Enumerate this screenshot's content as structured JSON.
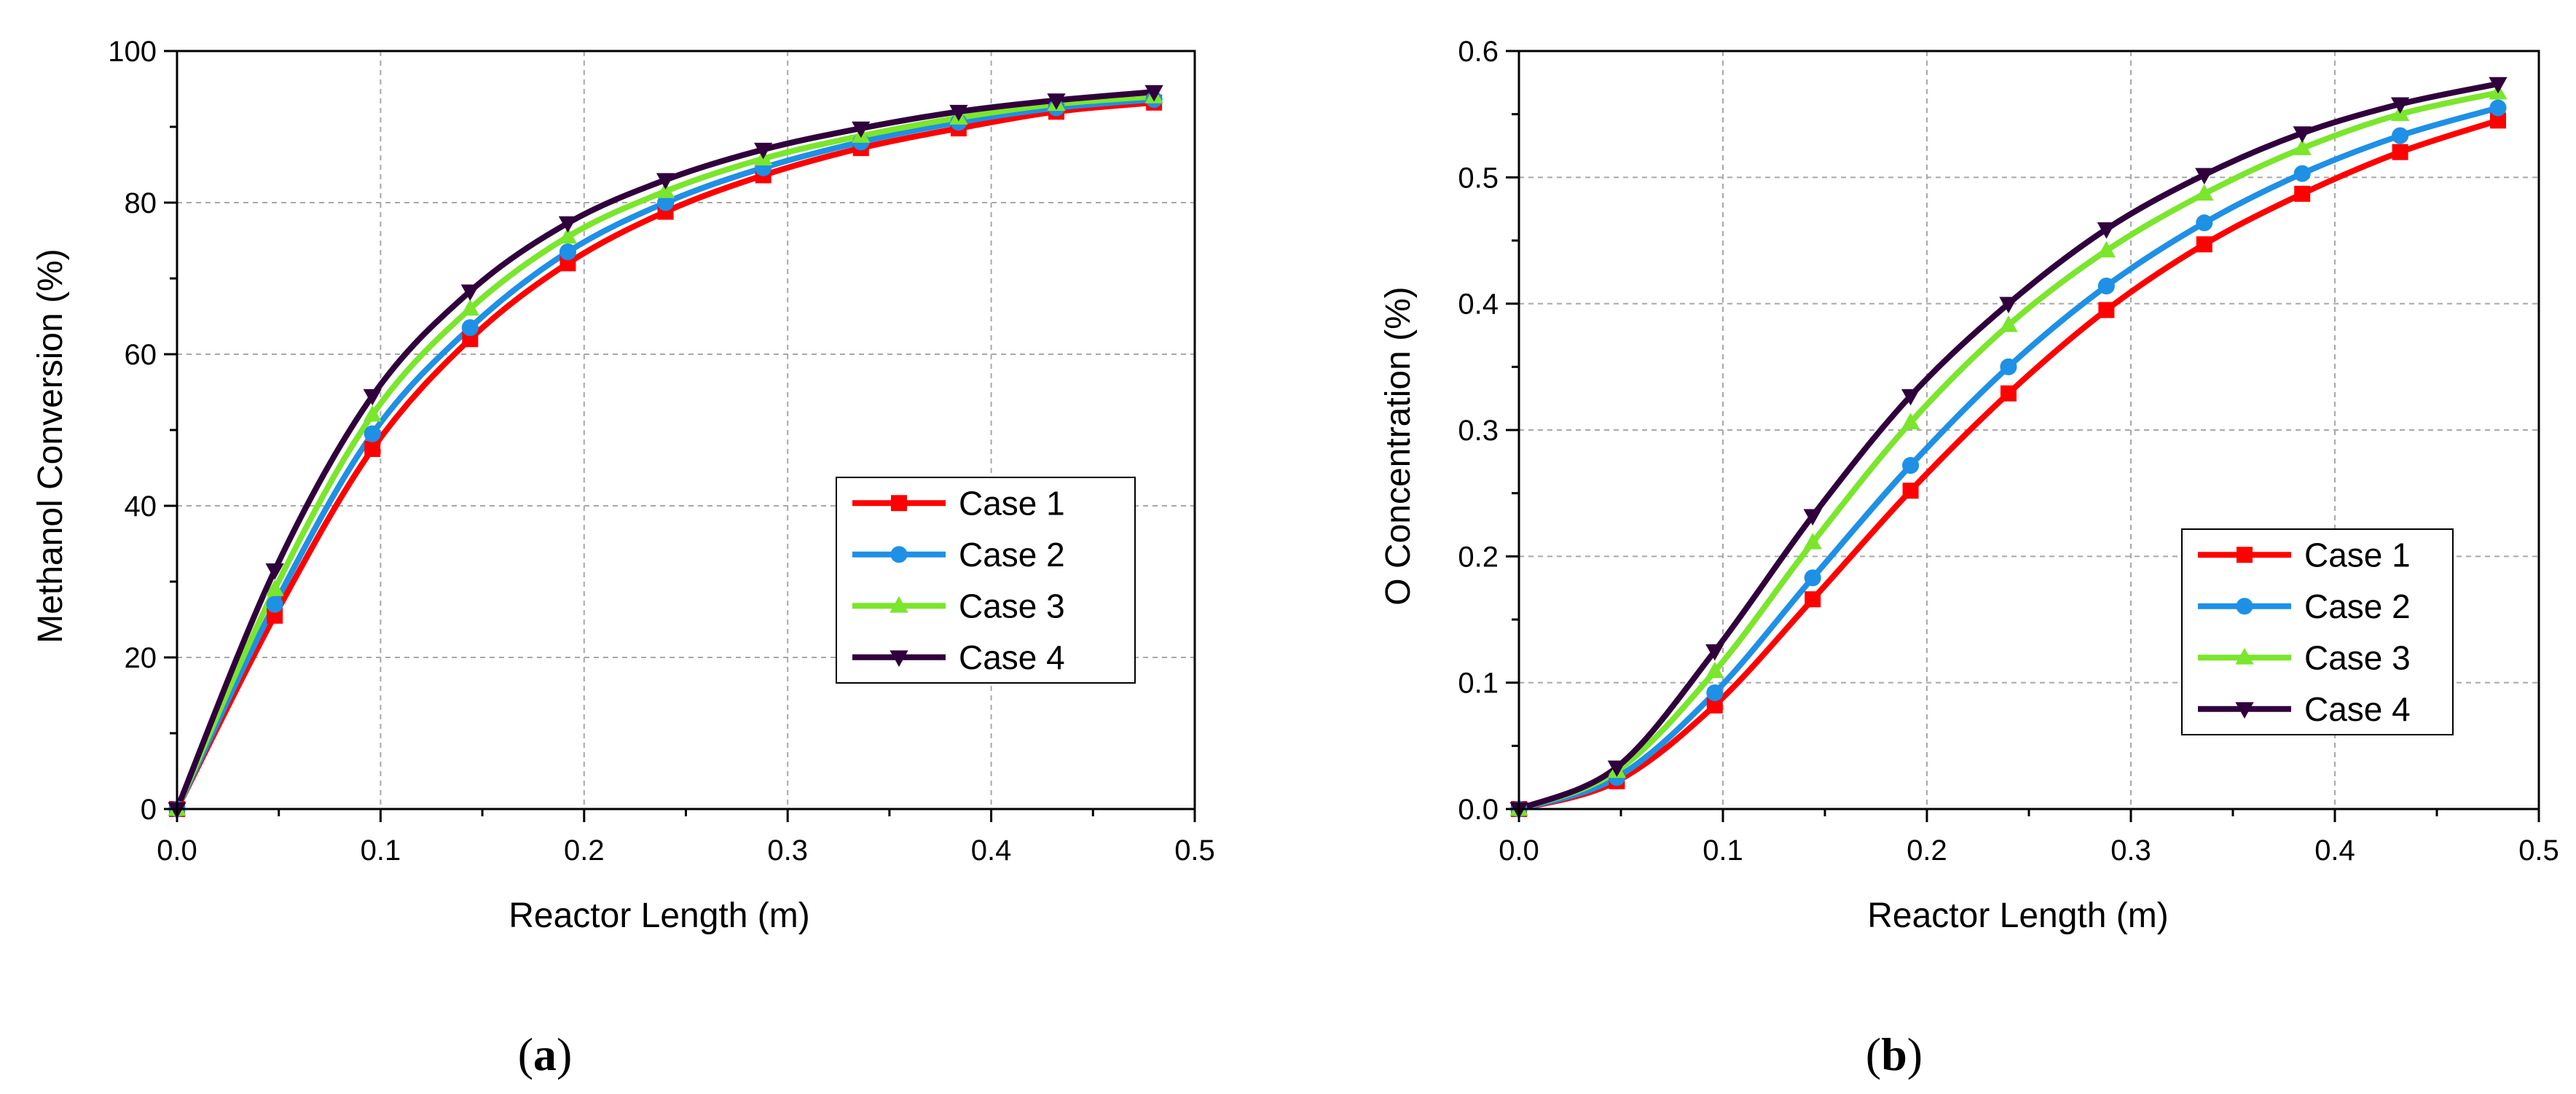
{
  "chart_data": [
    {
      "type": "line",
      "panel_label": {
        "open": "(",
        "letter": "a",
        "close": ")"
      },
      "xlabel": "Reactor Length (m)",
      "ylabel": "Methanol Conversion (%)",
      "xlim": [
        0,
        0.5
      ],
      "ylim": [
        0,
        100
      ],
      "x_ticks": [
        0,
        0.1,
        0.2,
        0.3,
        0.4,
        0.5
      ],
      "x_tick_labels": [
        "0.0",
        "0.1",
        "0.2",
        "0.3",
        "0.4",
        "0.5"
      ],
      "y_ticks": [
        0,
        20,
        40,
        60,
        80,
        100
      ],
      "y_tick_labels": [
        "0",
        "20",
        "40",
        "60",
        "80",
        "100"
      ],
      "grid": true,
      "legend_position": "center-right",
      "x": [
        0,
        0.048,
        0.096,
        0.144,
        0.192,
        0.24,
        0.288,
        0.336,
        0.384,
        0.432,
        0.48
      ],
      "series": [
        {
          "name": "Case 1",
          "color": "#ff0000",
          "marker": "square",
          "values": [
            0,
            25.5,
            47.5,
            62,
            72,
            78.8,
            83.6,
            87.2,
            89.8,
            92,
            93.2
          ]
        },
        {
          "name": "Case 2",
          "color": "#1e90e6",
          "marker": "circle",
          "values": [
            0,
            27,
            49.5,
            63.5,
            73.5,
            80,
            84.6,
            88,
            90.6,
            92.5,
            93.6
          ]
        },
        {
          "name": "Case 3",
          "color": "#7ae62c",
          "marker": "triangle-up",
          "values": [
            0,
            29,
            52,
            66,
            75.5,
            81.5,
            85.8,
            88.8,
            91.2,
            93,
            94
          ]
        },
        {
          "name": "Case 4",
          "color": "#30003c",
          "marker": "triangle-down",
          "values": [
            0,
            31.5,
            54.5,
            68.3,
            77.3,
            83,
            87,
            89.8,
            92,
            93.5,
            94.6
          ]
        }
      ]
    },
    {
      "type": "line",
      "panel_label": {
        "open": "(",
        "letter": "b",
        "close": ")"
      },
      "xlabel": "Reactor Length (m)",
      "ylabel": "O Concentration (%)",
      "xlim": [
        0,
        0.5
      ],
      "ylim": [
        0,
        0.6
      ],
      "x_ticks": [
        0,
        0.1,
        0.2,
        0.3,
        0.4,
        0.5
      ],
      "x_tick_labels": [
        "0.0",
        "0.1",
        "0.2",
        "0.3",
        "0.4",
        "0.5"
      ],
      "y_ticks": [
        0,
        0.1,
        0.2,
        0.3,
        0.4,
        0.5,
        0.6
      ],
      "y_tick_labels": [
        "0.0",
        "0.1",
        "0.2",
        "0.3",
        "0.4",
        "0.5",
        "0.6"
      ],
      "grid": true,
      "legend_position": "center-right",
      "x": [
        0,
        0.048,
        0.096,
        0.144,
        0.192,
        0.24,
        0.288,
        0.336,
        0.384,
        0.432,
        0.48
      ],
      "series": [
        {
          "name": "Case 1",
          "color": "#ff0000",
          "marker": "square",
          "values": [
            0,
            0.022,
            0.082,
            0.166,
            0.252,
            0.329,
            0.395,
            0.447,
            0.487,
            0.52,
            0.545
          ]
        },
        {
          "name": "Case 2",
          "color": "#1e90e6",
          "marker": "circle",
          "values": [
            0,
            0.025,
            0.092,
            0.183,
            0.272,
            0.35,
            0.414,
            0.464,
            0.503,
            0.533,
            0.555
          ]
        },
        {
          "name": "Case 3",
          "color": "#7ae62c",
          "marker": "triangle-up",
          "values": [
            0,
            0.03,
            0.109,
            0.211,
            0.306,
            0.383,
            0.442,
            0.487,
            0.523,
            0.55,
            0.567
          ]
        },
        {
          "name": "Case 4",
          "color": "#30003c",
          "marker": "triangle-down",
          "values": [
            0,
            0.033,
            0.125,
            0.232,
            0.327,
            0.4,
            0.459,
            0.502,
            0.535,
            0.558,
            0.574
          ]
        }
      ]
    }
  ]
}
